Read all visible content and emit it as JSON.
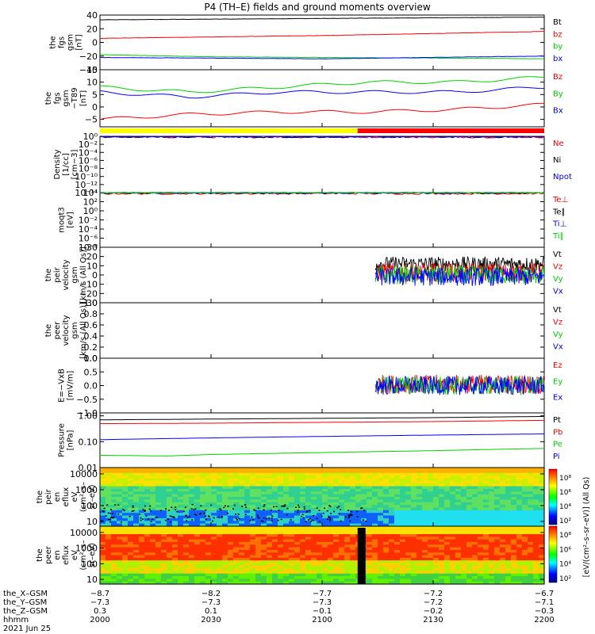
{
  "title": "P4 (TH–E) fields and ground moments overview",
  "colors": {
    "black": "#000000",
    "red": "#ff0000",
    "green": "#00d000",
    "blue": "#0000ff",
    "yellow": "#ffff00"
  },
  "chart_data": [
    {
      "type": "line",
      "ylabel": [
        "the",
        "fgs",
        "gsm",
        "[nT]"
      ],
      "ylim": [
        -40,
        40
      ],
      "yticks": [
        "40",
        "20",
        "0",
        "−20",
        "−40"
      ],
      "ytick_values": [
        40,
        20,
        0,
        -20,
        -40
      ],
      "series": [
        {
          "name": "Bt",
          "color": "#000000",
          "x": [
            0,
            0.25,
            0.5,
            0.75,
            1
          ],
          "values": [
            33,
            34,
            35,
            36,
            37
          ]
        },
        {
          "name": "bz",
          "color": "#ff0000",
          "x": [
            0,
            0.25,
            0.5,
            0.75,
            1
          ],
          "values": [
            6,
            8,
            10,
            13,
            16
          ]
        },
        {
          "name": "by",
          "color": "#00d000",
          "x": [
            0,
            0.25,
            0.5,
            0.75,
            1
          ],
          "values": [
            -18,
            -21,
            -22,
            -23,
            -24
          ]
        },
        {
          "name": "bx",
          "color": "#0000ff",
          "x": [
            0,
            0.25,
            0.5,
            0.75,
            1
          ],
          "values": [
            -22,
            -23,
            -24,
            -22,
            -20
          ]
        }
      ]
    },
    {
      "type": "line",
      "ylabel": [
        "the",
        "fgs",
        "gsm",
        "−T89",
        "[nT]"
      ],
      "ylim": [
        -8,
        15
      ],
      "yticks": [
        "15",
        "10",
        "5",
        "0",
        "−5"
      ],
      "ytick_values": [
        15,
        10,
        5,
        0,
        -5
      ],
      "series": [
        {
          "name": "Bz",
          "color": "#ff0000",
          "x": [
            0,
            0.2,
            0.4,
            0.6,
            0.8,
            1
          ],
          "values": [
            -5,
            -3,
            -2,
            -2,
            -1,
            1
          ]
        },
        {
          "name": "By",
          "color": "#00d000",
          "x": [
            0,
            0.2,
            0.4,
            0.6,
            0.8,
            1
          ],
          "values": [
            8,
            6,
            8,
            10,
            10,
            12
          ]
        },
        {
          "name": "Bx",
          "color": "#0000ff",
          "x": [
            0,
            0.2,
            0.4,
            0.6,
            0.8,
            1
          ],
          "values": [
            6,
            4,
            6,
            6,
            6,
            8
          ]
        }
      ]
    },
    {
      "type": "line",
      "ylabel": [
        "Density",
        "[1/cc]",
        "[cm−3]"
      ],
      "ylim": [
        -14,
        0
      ],
      "yticks": [
        "10⁰",
        "10⁻²",
        "10⁻⁴",
        "10⁻⁶",
        "10⁻⁸",
        "10⁻¹⁰",
        "10⁻¹²",
        "10⁻¹⁴"
      ],
      "ytick_values": [
        0,
        -2,
        -4,
        -6,
        -8,
        -10,
        -12,
        -14
      ],
      "series": [
        {
          "name": "Ne",
          "color": "#ff0000",
          "x": [
            0,
            1
          ],
          "values": [
            -0.2,
            -0.2
          ]
        },
        {
          "name": "Ni",
          "color": "#000000",
          "x": [
            0,
            1
          ],
          "values": [
            -0.15,
            -0.15
          ]
        },
        {
          "name": "Npot",
          "color": "#0000ff",
          "x": [
            0,
            1
          ],
          "values": [
            -0.1,
            -0.1
          ]
        }
      ]
    },
    {
      "type": "line",
      "ylabel": [
        "moqt3",
        "[eV]"
      ],
      "ylim": [
        -8,
        4
      ],
      "yticks": [
        "10⁴",
        "10²",
        "10⁰",
        "10⁻²",
        "10⁻⁴",
        "10⁻⁶",
        "10⁻⁸"
      ],
      "ytick_values": [
        4,
        2,
        0,
        -2,
        -4,
        -6,
        -8
      ],
      "series": [
        {
          "name": "Te⊥",
          "color": "#ff0000",
          "x": [
            0,
            1
          ],
          "values": [
            3.8,
            3.8
          ]
        },
        {
          "name": "Te∥",
          "color": "#000000",
          "x": [
            0,
            1
          ],
          "values": [
            3.9,
            3.9
          ]
        },
        {
          "name": "Ti⊥",
          "color": "#0000ff",
          "x": [
            0,
            1
          ],
          "values": [
            3.95,
            3.95
          ]
        },
        {
          "name": "Ti∥",
          "color": "#00d000",
          "x": [
            0,
            1
          ],
          "values": [
            4,
            4
          ]
        }
      ]
    },
    {
      "type": "line",
      "ylabel": [
        "the",
        "peir",
        "velocity",
        "gsm",
        "[km/s (All Qs)]"
      ],
      "ylim": [
        -30,
        30
      ],
      "yticks": [
        "30",
        "20",
        "10",
        "0",
        "−10",
        "−20",
        "−30"
      ],
      "ytick_values": [
        30,
        20,
        10,
        0,
        -10,
        -20,
        -30
      ],
      "series": [
        {
          "name": "Vt",
          "color": "#000000",
          "x": [
            0.62,
            1
          ],
          "values": [
            12,
            12
          ]
        },
        {
          "name": "Vz",
          "color": "#ff0000",
          "x": [
            0.62,
            1
          ],
          "values": [
            3,
            3
          ]
        },
        {
          "name": "Vy",
          "color": "#00d000",
          "x": [
            0.62,
            1
          ],
          "values": [
            0,
            0
          ]
        },
        {
          "name": "Vx",
          "color": "#0000ff",
          "x": [
            0.62,
            1
          ],
          "values": [
            -2,
            -2
          ]
        }
      ]
    },
    {
      "type": "line",
      "ylabel": [
        "the",
        "peer",
        "velocity",
        "gsm",
        "[km/s (All Qs)]"
      ],
      "ylim": [
        0,
        1
      ],
      "yticks": [
        "1.0",
        "0.8",
        "0.6",
        "0.4",
        "0.2",
        "0.0"
      ],
      "ytick_values": [
        1.0,
        0.8,
        0.6,
        0.4,
        0.2,
        0.0
      ],
      "series": [
        {
          "name": "Vt",
          "color": "#000000",
          "x": [],
          "values": []
        },
        {
          "name": "Vz",
          "color": "#ff0000",
          "x": [],
          "values": []
        },
        {
          "name": "Vy",
          "color": "#00d000",
          "x": [],
          "values": []
        },
        {
          "name": "Vx",
          "color": "#0000ff",
          "x": [],
          "values": []
        }
      ]
    },
    {
      "type": "line",
      "ylabel": [
        "E=−VxB",
        "[mV/m]"
      ],
      "ylim": [
        -1,
        1
      ],
      "yticks": [
        "1.0",
        "0.5",
        "0.0",
        "−0.5",
        "−1.0"
      ],
      "ytick_values": [
        1.0,
        0.5,
        0.0,
        -0.5,
        -1.0
      ],
      "series": [
        {
          "name": "Ez",
          "color": "#ff0000",
          "x": [
            0.62,
            1
          ],
          "values": [
            0.05,
            0.05
          ]
        },
        {
          "name": "Ey",
          "color": "#00d000",
          "x": [
            0.62,
            1
          ],
          "values": [
            0,
            0
          ]
        },
        {
          "name": "Ex",
          "color": "#0000ff",
          "x": [
            0.62,
            1
          ],
          "values": [
            0,
            0
          ]
        }
      ]
    },
    {
      "type": "line",
      "ylabel": [
        "Pressure",
        "[nPa]"
      ],
      "ylim": [
        0.01,
        1.3
      ],
      "yticks": [
        "1.00",
        "0.10",
        "0.01"
      ],
      "ytick_values": [
        1.0,
        0.1,
        0.01
      ],
      "series": [
        {
          "name": "Pt",
          "color": "#000000",
          "x": [
            0,
            0.25,
            0.5,
            0.75,
            1
          ],
          "values": [
            0.7,
            0.75,
            0.8,
            0.85,
            0.95
          ]
        },
        {
          "name": "Pb",
          "color": "#ff0000",
          "x": [
            0,
            0.25,
            0.5,
            0.75,
            1
          ],
          "values": [
            0.5,
            0.52,
            0.56,
            0.6,
            0.67
          ]
        },
        {
          "name": "Pe",
          "color": "#00d000",
          "x": [
            0,
            0.15,
            0.25,
            0.5,
            0.75,
            1
          ],
          "values": [
            0.03,
            0.028,
            0.032,
            0.038,
            0.045,
            0.055
          ]
        },
        {
          "name": "Pi",
          "color": "#0000ff",
          "x": [
            0,
            0.25,
            0.5,
            0.75,
            1
          ],
          "values": [
            0.12,
            0.14,
            0.16,
            0.18,
            0.2
          ]
        }
      ]
    },
    {
      "type": "heatmap",
      "ylabel": [
        "the",
        "peir",
        "en",
        "eflux",
        "eV",
        "(cm²–s–",
        "sr–eV)"
      ],
      "yticks": [
        "10000",
        "1000",
        "100",
        "10"
      ],
      "ytick_values": [
        10000,
        1000,
        100,
        10
      ],
      "ylim": [
        5,
        25000
      ]
    },
    {
      "type": "heatmap",
      "ylabel": [
        "the",
        "peer",
        "en",
        "eflux",
        "eV",
        "(cm²–s–",
        "sr–eV)"
      ],
      "yticks": [
        "10000",
        "1000",
        "100",
        "10"
      ],
      "ytick_values": [
        10000,
        1000,
        100,
        10
      ],
      "ylim": [
        5,
        25000
      ]
    }
  ],
  "colorbar": {
    "label": "[eV/(cm²–s–sr–eV)] (All Qs)",
    "ticks": [
      "10⁸",
      "10⁶",
      "10⁴",
      "10²"
    ],
    "ticks2": [
      "10⁸",
      "10⁶",
      "10⁴",
      "10²"
    ]
  },
  "mode_bar": [
    {
      "color": "#ffff00",
      "from": 0,
      "to": 0.58
    },
    {
      "color": "#ff0000",
      "from": 0.58,
      "to": 1
    }
  ],
  "xaxis": {
    "row_labels": [
      "the_X–GSM",
      "the_Y–GSM",
      "the_Z–GSM",
      "hhmm",
      "2021 Jun 25"
    ],
    "columns": [
      {
        "values": [
          "−8.7",
          "−7.3",
          "0.3",
          "2000"
        ]
      },
      {
        "values": [
          "−8.2",
          "−7.3",
          "0.1",
          "2030"
        ]
      },
      {
        "values": [
          "−7.7",
          "−7.3",
          "−0.1",
          "2100"
        ]
      },
      {
        "values": [
          "−7.2",
          "−7.2",
          "−0.2",
          "2130"
        ]
      },
      {
        "values": [
          "−6.7",
          "−7.1",
          "−0.3",
          "2200"
        ]
      }
    ]
  }
}
